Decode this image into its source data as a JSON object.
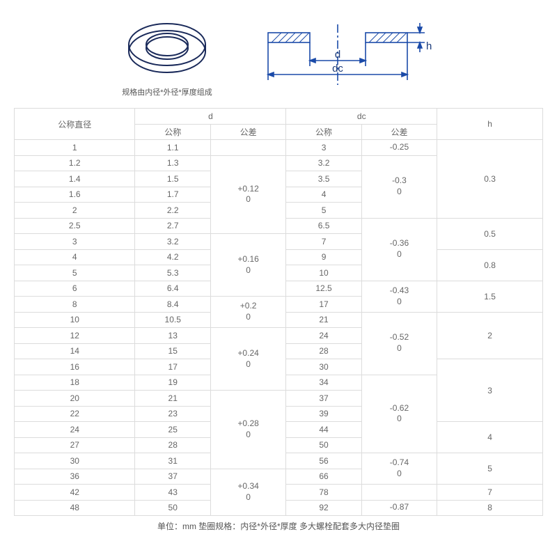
{
  "diagram": {
    "caption": "规格由内径*外径*厚度组成",
    "labels": {
      "d": "d",
      "dc": "dc",
      "h": "h"
    },
    "colors": {
      "line": "#1a4aa8",
      "hatch": "#1a4aa8",
      "bg": "#ffffff"
    }
  },
  "table": {
    "headers": {
      "nominal_diameter": "公称直径",
      "d": "d",
      "dc": "dc",
      "h": "h",
      "nominal": "公称",
      "tolerance": "公差"
    },
    "rows": [
      {
        "nom": "1",
        "d": "1.1",
        "dc": "3"
      },
      {
        "nom": "1.2",
        "d": "1.3",
        "dc": "3.2"
      },
      {
        "nom": "1.4",
        "d": "1.5",
        "dc": "3.5"
      },
      {
        "nom": "1.6",
        "d": "1.7",
        "dc": "4"
      },
      {
        "nom": "2",
        "d": "2.2",
        "dc": "5"
      },
      {
        "nom": "2.5",
        "d": "2.7",
        "dc": "6.5"
      },
      {
        "nom": "3",
        "d": "3.2",
        "dc": "7"
      },
      {
        "nom": "4",
        "d": "4.2",
        "dc": "9"
      },
      {
        "nom": "5",
        "d": "5.3",
        "dc": "10"
      },
      {
        "nom": "6",
        "d": "6.4",
        "dc": "12.5"
      },
      {
        "nom": "8",
        "d": "8.4",
        "dc": "17"
      },
      {
        "nom": "10",
        "d": "10.5",
        "dc": "21"
      },
      {
        "nom": "12",
        "d": "13",
        "dc": "24"
      },
      {
        "nom": "14",
        "d": "15",
        "dc": "28"
      },
      {
        "nom": "16",
        "d": "17",
        "dc": "30"
      },
      {
        "nom": "18",
        "d": "19",
        "dc": "34"
      },
      {
        "nom": "20",
        "d": "21",
        "dc": "37"
      },
      {
        "nom": "22",
        "d": "23",
        "dc": "39"
      },
      {
        "nom": "24",
        "d": "25",
        "dc": "44"
      },
      {
        "nom": "27",
        "d": "28",
        "dc": "50"
      },
      {
        "nom": "30",
        "d": "31",
        "dc": "56"
      },
      {
        "nom": "36",
        "d": "37",
        "dc": "66"
      },
      {
        "nom": "42",
        "d": "43",
        "dc": "78"
      },
      {
        "nom": "48",
        "d": "50",
        "dc": "92"
      }
    ],
    "d_tolerance": [
      {
        "start": 1,
        "span": 5,
        "line1": "+0.12",
        "line2": "0"
      },
      {
        "start": 6,
        "span": 4,
        "line1": "+0.16",
        "line2": "0"
      },
      {
        "start": 10,
        "span": 2,
        "line1": "+0.2",
        "line2": "0"
      },
      {
        "start": 12,
        "span": 4,
        "line1": "+0.24",
        "line2": "0"
      },
      {
        "start": 16,
        "span": 5,
        "line1": "+0.28",
        "line2": "0"
      },
      {
        "start": 21,
        "span": 3,
        "line1": "+0.34",
        "line2": "0"
      }
    ],
    "dc_tolerance": [
      {
        "start": 0,
        "span": 1,
        "line1": "-0.25",
        "line2": ""
      },
      {
        "start": 1,
        "span": 4,
        "line1": "-0.3",
        "line2": "0"
      },
      {
        "start": 5,
        "span": 4,
        "line1": "-0.36",
        "line2": "0"
      },
      {
        "start": 9,
        "span": 2,
        "line1": "-0.43",
        "line2": "0"
      },
      {
        "start": 11,
        "span": 4,
        "line1": "-0.52",
        "line2": "0"
      },
      {
        "start": 15,
        "span": 5,
        "line1": "-0.62",
        "line2": "0"
      },
      {
        "start": 20,
        "span": 2,
        "line1": "-0.74",
        "line2": "0"
      },
      {
        "start": 23,
        "span": 1,
        "line1": "-0.87",
        "line2": ""
      }
    ],
    "h_values": [
      {
        "start": 0,
        "span": 5,
        "val": "0.3"
      },
      {
        "start": 5,
        "span": 2,
        "val": "0.5"
      },
      {
        "start": 7,
        "span": 2,
        "val": "0.8"
      },
      {
        "start": 9,
        "span": 2,
        "val": "1.5"
      },
      {
        "start": 11,
        "span": 3,
        "val": "2"
      },
      {
        "start": 14,
        "span": 4,
        "val": "3"
      },
      {
        "start": 18,
        "span": 2,
        "val": "4"
      },
      {
        "start": 20,
        "span": 2,
        "val": "5"
      },
      {
        "start": 22,
        "span": 1,
        "val": "7"
      },
      {
        "start": 23,
        "span": 1,
        "val": "8"
      }
    ]
  },
  "footer": "单位：mm 垫圈规格：内径*外径*厚度 多大螺栓配套多大内径垫圈"
}
